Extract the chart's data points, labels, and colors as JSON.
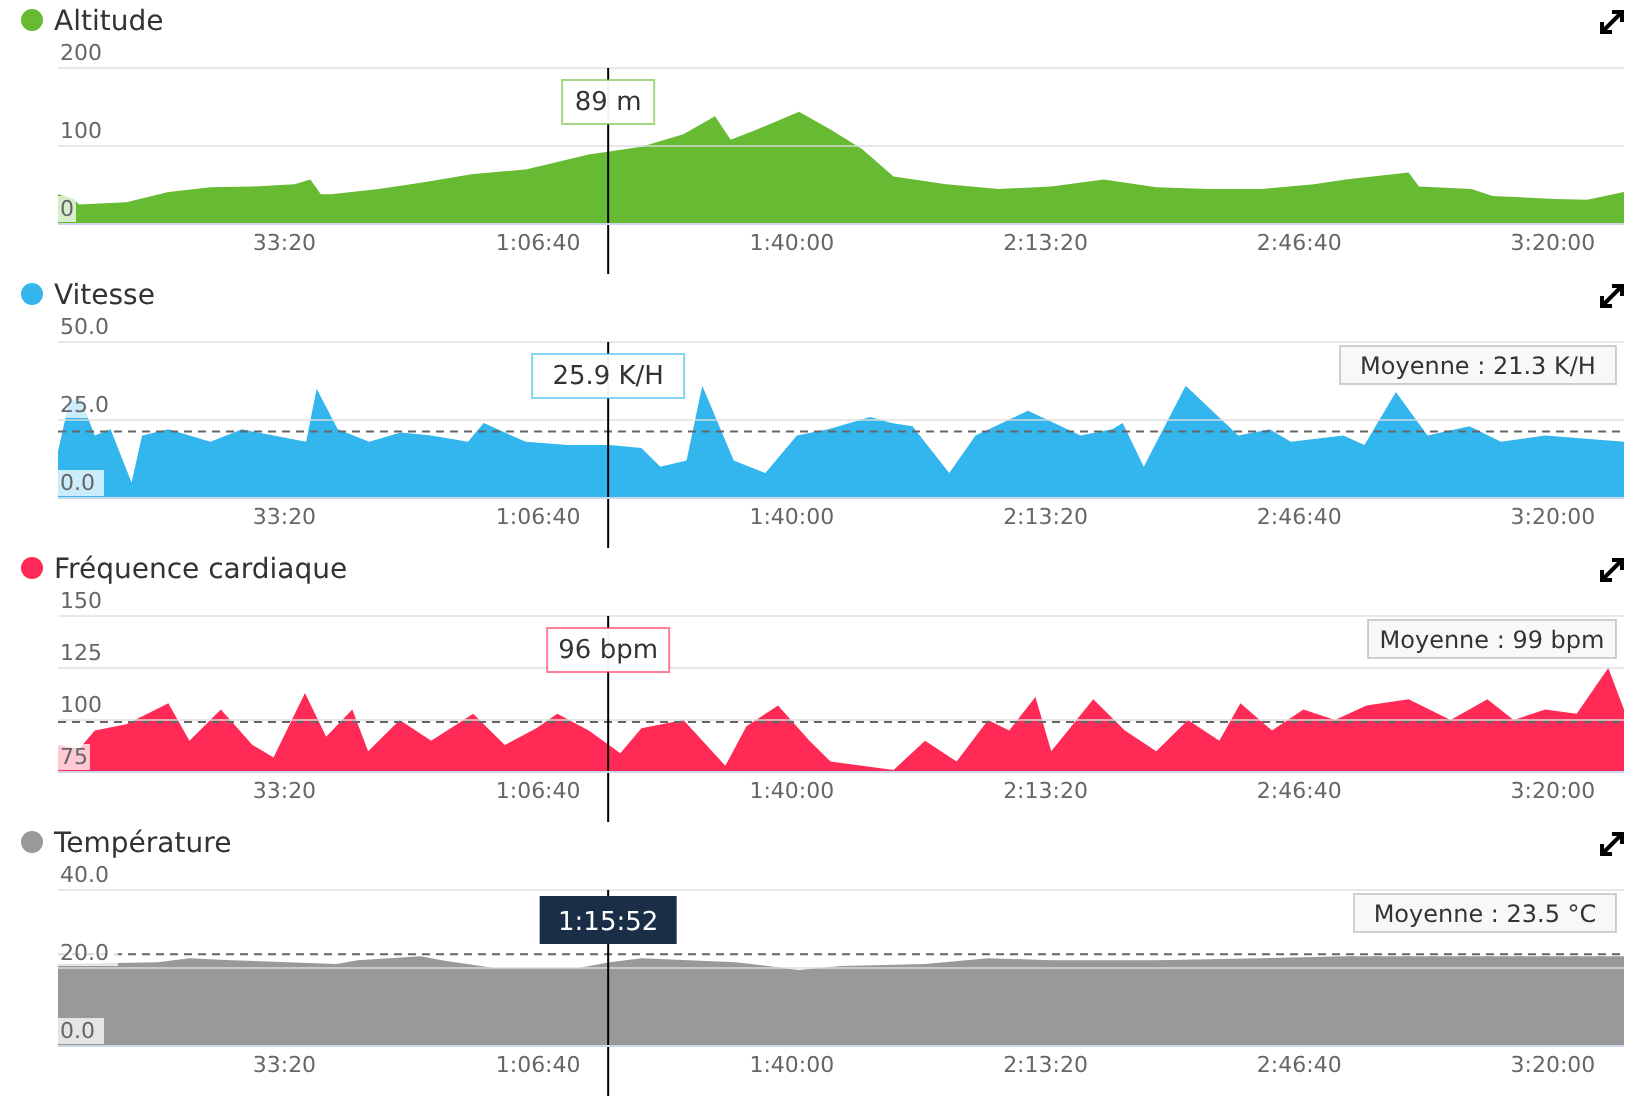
{
  "chart_data": [
    {
      "type": "area",
      "legend": "top left",
      "grid": "y",
      "xlim": [
        215,
        12560
      ],
      "ylim": [
        0,
        200
      ],
      "yticks": [
        0,
        100,
        200
      ],
      "xticks": [
        {
          "value": 2000,
          "label": "33:20"
        },
        {
          "value": 4000,
          "label": "1:06:40"
        },
        {
          "value": 6000,
          "label": "1:40:00"
        },
        {
          "value": 8000,
          "label": "2:13:20"
        },
        {
          "value": 10000,
          "label": "2:46:40"
        },
        {
          "value": 12000,
          "label": "3:20:00"
        }
      ],
      "x": [
        215,
        340,
        381,
        754,
        1085,
        1417,
        1748,
        2080,
        2204,
        2287,
        2370,
        2742,
        3074,
        3488,
        3902,
        4399,
        4814,
        5145,
        5394,
        5518,
        5725,
        6056,
        6305,
        6553,
        6802,
        7216,
        7630,
        8045,
        8459,
        8873,
        9288,
        9702,
        10116,
        10365,
        10862,
        10944,
        11358,
        11524,
        12022,
        12270,
        12560
      ],
      "series": [
        {
          "name": "Altitude",
          "color": "#66bb33",
          "values": [
            38,
            32,
            25,
            28,
            41,
            47,
            48,
            51,
            57,
            38,
            38,
            45,
            53,
            64,
            70,
            89,
            99,
            115,
            138,
            108,
            121,
            144,
            121,
            96,
            61,
            51,
            45,
            48,
            57,
            47,
            45,
            45,
            51,
            57,
            66,
            48,
            45,
            36,
            32,
            31,
            41
          ]
        }
      ],
      "ref_lines": [
        {
          "axis": "x",
          "value": 4552,
          "color": "#000000"
        }
      ],
      "annotations": [
        "89 m"
      ]
    },
    {
      "type": "area",
      "legend": "top left",
      "grid": "y",
      "xlim": [
        215,
        12560
      ],
      "ylim": [
        0,
        50
      ],
      "yticks": [
        {
          "value": 0,
          "label": "0.0"
        },
        {
          "value": 25,
          "label": "25.0"
        },
        {
          "value": 50,
          "label": "50.0"
        }
      ],
      "xticks": [
        {
          "value": 2000,
          "label": "33:20"
        },
        {
          "value": 4000,
          "label": "1:06:40"
        },
        {
          "value": 6000,
          "label": "1:40:00"
        },
        {
          "value": 8000,
          "label": "2:13:20"
        },
        {
          "value": 10000,
          "label": "2:46:40"
        },
        {
          "value": 12000,
          "label": "3:20:00"
        }
      ],
      "x": [
        215,
        298,
        381,
        505,
        629,
        795,
        878,
        1085,
        1417,
        1665,
        1914,
        2171,
        2254,
        2420,
        2668,
        2917,
        3157,
        3447,
        3571,
        3902,
        4233,
        4565,
        4814,
        4963,
        5170,
        5294,
        5542,
        5791,
        6040,
        6288,
        6619,
        6785,
        6951,
        7241,
        7448,
        7862,
        8276,
        8525,
        8608,
        8774,
        9105,
        9519,
        9768,
        9934,
        10348,
        10514,
        10762,
        11011,
        11342,
        11590,
        11939,
        12560
      ],
      "series": [
        {
          "name": "Vitesse",
          "color": "#33b5ee",
          "values": [
            15,
            30,
            33,
            20,
            22,
            5,
            20,
            22,
            18,
            22,
            20,
            18,
            35,
            22,
            18,
            21,
            20,
            18,
            24,
            18,
            17,
            17,
            16,
            10,
            12,
            36,
            12,
            8,
            20,
            22,
            26,
            24,
            23,
            8,
            20,
            28,
            20,
            22,
            24,
            10,
            36,
            20,
            22,
            18,
            20,
            17,
            34,
            20,
            23,
            18,
            20,
            18
          ]
        }
      ],
      "ref_lines": [
        {
          "axis": "x",
          "value": 4552,
          "color": "#000000"
        },
        {
          "axis": "y",
          "value": 21.3,
          "label": "Moyenne : 21.3 K/H",
          "color": "#666666",
          "line_style": "dashed"
        }
      ],
      "annotations": [
        "25.9 K/H"
      ]
    },
    {
      "type": "area",
      "legend": "top left",
      "grid": "y",
      "xlim": [
        215,
        12560
      ],
      "ylim": [
        75,
        150
      ],
      "yticks": [
        75,
        100,
        125,
        150
      ],
      "xticks": [
        {
          "value": 2000,
          "label": "33:20"
        },
        {
          "value": 4000,
          "label": "1:06:40"
        },
        {
          "value": 6000,
          "label": "1:40:00"
        },
        {
          "value": 8000,
          "label": "2:13:20"
        },
        {
          "value": 10000,
          "label": "2:46:40"
        },
        {
          "value": 12000,
          "label": "3:20:00"
        }
      ],
      "x": [
        215,
        381,
        505,
        754,
        1085,
        1251,
        1499,
        1748,
        1914,
        2162,
        2329,
        2535,
        2660,
        2909,
        3157,
        3488,
        3737,
        3986,
        4151,
        4399,
        4648,
        4814,
        5145,
        5476,
        5642,
        5891,
        6139,
        6305,
        6553,
        6802,
        7050,
        7299,
        7547,
        7713,
        7920,
        8045,
        8376,
        8625,
        8873,
        9122,
        9370,
        9536,
        9785,
        10033,
        10282,
        10530,
        10862,
        11193,
        11483,
        11690,
        11939,
        12187,
        12436,
        12560
      ],
      "series": [
        {
          "name": "Fréquence cardiaque",
          "color": "#ff2a55",
          "values": [
            88,
            86,
            95,
            98,
            108,
            90,
            105,
            88,
            82,
            113,
            92,
            105,
            85,
            100,
            90,
            103,
            88,
            96,
            103,
            95,
            84,
            96,
            100,
            78,
            97,
            107,
            90,
            80,
            78,
            76,
            90,
            80,
            100,
            95,
            111,
            85,
            110,
            95,
            85,
            100,
            90,
            108,
            95,
            105,
            100,
            107,
            110,
            100,
            110,
            100,
            105,
            103,
            125,
            105
          ]
        }
      ],
      "ref_lines": [
        {
          "axis": "x",
          "value": 4552,
          "color": "#000000"
        },
        {
          "axis": "y",
          "value": 99,
          "label": "Moyenne : 99 bpm",
          "color": "#666666",
          "line_style": "dashed"
        }
      ],
      "annotations": [
        "96 bpm"
      ]
    },
    {
      "type": "area",
      "legend": "top left",
      "grid": "y",
      "xlim": [
        215,
        12560
      ],
      "ylim": [
        0,
        40
      ],
      "yticks": [
        {
          "value": 0,
          "label": "0.0"
        },
        {
          "value": 20,
          "label": "20.0"
        },
        {
          "value": 40,
          "label": "40.0"
        }
      ],
      "xticks": [
        {
          "value": 2000,
          "label": "33:20"
        },
        {
          "value": 4000,
          "label": "1:06:40"
        },
        {
          "value": 6000,
          "label": "1:40:00"
        },
        {
          "value": 8000,
          "label": "2:13:20"
        },
        {
          "value": 10000,
          "label": "2:46:40"
        },
        {
          "value": 12000,
          "label": "3:20:00"
        }
      ],
      "x": [
        215,
        1002,
        1251,
        1582,
        2410,
        2577,
        3074,
        3240,
        3654,
        4317,
        4565,
        4814,
        5560,
        6056,
        6388,
        7050,
        7547,
        8045,
        8873,
        9702,
        10365,
        12560
      ],
      "series": [
        {
          "name": "Température",
          "color": "#999999",
          "values": [
            21,
            21.5,
            22.5,
            22,
            21,
            22,
            23,
            22,
            20,
            20,
            21.5,
            22.5,
            21.5,
            19.5,
            20.5,
            21,
            22.5,
            22,
            22,
            22.5,
            23,
            23
          ]
        }
      ],
      "ref_lines": [
        {
          "axis": "x",
          "value": 4552,
          "color": "#000000"
        },
        {
          "axis": "y",
          "value": 23.5,
          "label": "Moyenne : 23.5 °C",
          "color": "#666666",
          "line_style": "dashed"
        }
      ],
      "annotations": [
        "1:15:52"
      ]
    }
  ]
}
